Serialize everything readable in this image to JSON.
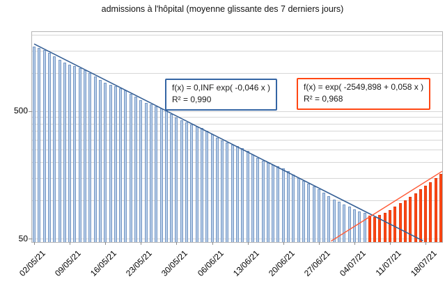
{
  "title": "admissions à l'hôpital (moyenne glissante des 7 derniers jours)",
  "annotations": [
    {
      "name": "fit-decroissant",
      "line1": "f(x) = 0,INF exp( -0,046 x )",
      "line2": "R² = 0,990",
      "border_color": "#3465a4"
    },
    {
      "name": "fit-croissant",
      "line1": "f(x) = exp( -2549,898 + 0,058 x )",
      "line2": "R² = 0,968",
      "border_color": "#ff4713"
    }
  ],
  "chart_data": {
    "type": "bar",
    "title": "admissions à l'hôpital (moyenne glissante des 7 derniers jours)",
    "y_scale": "log",
    "ylim": [
      47.5,
      2150
    ],
    "grid": "on",
    "legend": "none",
    "y_tick_labels": [
      "500",
      "50"
    ],
    "y_tick_values": [
      500,
      50
    ],
    "gridline_values": [
      50,
      100,
      150,
      200,
      250,
      300,
      350,
      400,
      450,
      500,
      1000,
      1500,
      2000
    ],
    "x_tick_labels": [
      "02/05/21",
      "09/05/21",
      "16/05/21",
      "23/05/21",
      "30/05/21",
      "06/06/21",
      "13/06/21",
      "20/06/21",
      "27/06/21",
      "04/07/21",
      "11/07/21",
      "18/07/21"
    ],
    "x_tick_days": [
      0,
      7,
      14,
      21,
      28,
      35,
      42,
      49,
      56,
      63,
      70,
      77
    ],
    "series": [
      {
        "name": "admissions-en-baisse",
        "fill": "#b7cde9",
        "border": "#7597c3",
        "start_day": 0,
        "values": [
          1620,
          1570,
          1509,
          1432,
          1349,
          1271,
          1208,
          1163,
          1128,
          1093,
          1048,
          994,
          935,
          882,
          840,
          810,
          786,
          761,
          728,
          689,
          648,
          612,
          584,
          564,
          548,
          528,
          506,
          478,
          449,
          425,
          407,
          393,
          381,
          368,
          351,
          332,
          312,
          295,
          283,
          274,
          266,
          256,
          244,
          230,
          216,
          205,
          197,
          191,
          185,
          178,
          169,
          159,
          150,
          142,
          135,
          128,
          122,
          115,
          108,
          101,
          97,
          93,
          89,
          85,
          82,
          80
        ]
      },
      {
        "name": "admissions-en-hausse",
        "fill": "#ff4713",
        "border": "#e23c10",
        "start_day": 66,
        "values": [
          76,
          74,
          77,
          80,
          84,
          89,
          95,
          100,
          107,
          114,
          122,
          130,
          139,
          149,
          161
        ]
      }
    ],
    "trendlines": [
      {
        "name": "tendance-decroissante",
        "color": "#355f95",
        "width": 1.6,
        "d1": 0,
        "v1": 1690,
        "d2": 76.5,
        "v2": 48
      },
      {
        "name": "tendance-croissante",
        "color": "#ff5a36",
        "width": 1.4,
        "d1": 58.4,
        "v1": 47.7,
        "d2": 80.3,
        "v2": 169
      }
    ]
  }
}
